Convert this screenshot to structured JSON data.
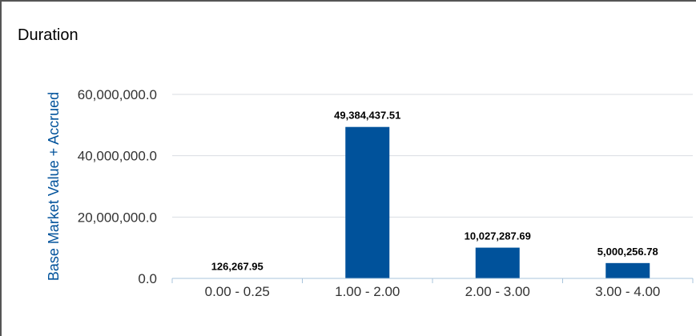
{
  "colors": {
    "bar": "#00529b",
    "axis_title": "#00529b",
    "tick_text": "#333333",
    "grid": "#d9dde2",
    "baseline": "#a8c4dc",
    "value_label": "#000000"
  },
  "chart_data": {
    "type": "bar",
    "title": "Duration",
    "xlabel": "",
    "ylabel": "Base Market Value + Accrued",
    "categories": [
      "0.00 - 0.25",
      "1.00 - 2.00",
      "2.00 - 3.00",
      "3.00 - 4.00"
    ],
    "values": [
      126267.95,
      49384437.51,
      10027287.69,
      5000256.78
    ],
    "value_labels": [
      "126,267.95",
      "49,384,437.51",
      "10,027,287.69",
      "5,000,256.78"
    ],
    "ylim": [
      0,
      60000000
    ],
    "yticks": [
      0,
      20000000,
      40000000,
      60000000
    ],
    "ytick_labels": [
      "0.0",
      "20,000,000.0",
      "40,000,000.0",
      "60,000,000.0"
    ],
    "grid": true,
    "legend": "none"
  }
}
